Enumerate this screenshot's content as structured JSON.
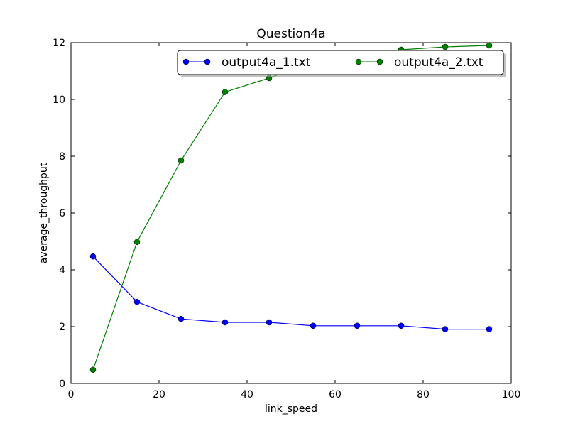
{
  "chart_data": {
    "type": "line",
    "title": "Question4a",
    "xlabel": "link_speed",
    "ylabel": "average_throughput",
    "xlim": [
      0,
      100
    ],
    "ylim": [
      0,
      12
    ],
    "xticks": [
      0,
      20,
      40,
      60,
      80,
      100
    ],
    "xtick_labels": [
      "0",
      "20",
      "40",
      "60",
      "80",
      "100"
    ],
    "yticks": [
      0,
      2,
      4,
      6,
      8,
      10,
      12
    ],
    "ytick_labels": [
      "0",
      "2",
      "4",
      "6",
      "8",
      "10",
      "12"
    ],
    "grid": false,
    "legend_position": "top-right",
    "series": [
      {
        "name": "output4a_1.txt",
        "color": "#0000ff",
        "x": [
          5,
          15,
          25,
          35,
          45,
          55,
          65,
          75,
          85,
          95
        ],
        "y": [
          4.47,
          2.87,
          2.27,
          2.15,
          2.15,
          2.03,
          2.03,
          2.03,
          1.91,
          1.91
        ]
      },
      {
        "name": "output4a_2.txt",
        "color": "#008000",
        "x": [
          5,
          15,
          25,
          35,
          45,
          55,
          65,
          75,
          85,
          95
        ],
        "y": [
          0.48,
          4.98,
          7.85,
          10.26,
          10.75,
          11.35,
          11.6,
          11.75,
          11.85,
          11.9
        ]
      }
    ]
  }
}
